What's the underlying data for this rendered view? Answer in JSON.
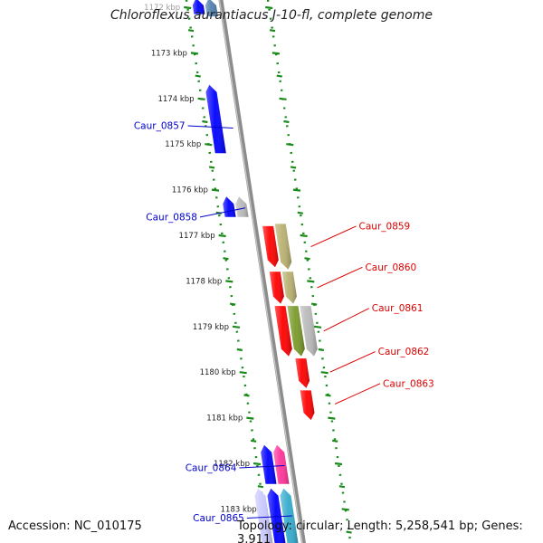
{
  "title": "Chloroflexus aurantiacus J-10-fl, complete genome",
  "footer": {
    "accession": "Accession: NC_010175",
    "topology": "Topology: circular; Length: 5,258,541 bp; Genes: 3,911"
  },
  "colors": {
    "backbone": "#8c8c8c",
    "tick": "#1a8a1a",
    "forward_label": "#0000cc",
    "reverse_label": "#dd0000",
    "blue": "#0000ff",
    "red": "#ff0000",
    "olive": "#b8b070",
    "grey": "#b8b8b8",
    "magenta": "#ff3399",
    "cyan": "#33aacc",
    "lavender": "#c8c8ff",
    "green": "#7a9a2a",
    "slate": "#5080b0"
  },
  "ruler_labels": [
    {
      "kbp": 1172,
      "text": "1172 kbp"
    },
    {
      "kbp": 1173,
      "text": "1173 kbp"
    },
    {
      "kbp": 1174,
      "text": "1174 kbp"
    },
    {
      "kbp": 1175,
      "text": "1175 kbp"
    },
    {
      "kbp": 1176,
      "text": "1176 kbp"
    },
    {
      "kbp": 1177,
      "text": "1177 kbp"
    },
    {
      "kbp": 1178,
      "text": "1178 kbp"
    },
    {
      "kbp": 1179,
      "text": "1179 kbp"
    },
    {
      "kbp": 1180,
      "text": "1180 kbp"
    },
    {
      "kbp": 1181,
      "text": "1181 kbp"
    },
    {
      "kbp": 1182,
      "text": "1182 kbp"
    },
    {
      "kbp": 1183,
      "text": "1183 kbp"
    }
  ],
  "features": [
    {
      "id": "f-top-1",
      "strand": "+",
      "ring": 0,
      "start": 1171.8,
      "end": 1172.2,
      "color": "slate"
    },
    {
      "id": "f-top-2",
      "strand": "+",
      "ring": 1,
      "start": 1171.8,
      "end": 1172.15,
      "color": "blue"
    },
    {
      "id": "f-0857",
      "strand": "+",
      "ring": 1,
      "start": 1173.7,
      "end": 1175.2,
      "color": "blue"
    },
    {
      "id": "f-0858a",
      "strand": "+",
      "ring": 0,
      "start": 1176.15,
      "end": 1176.6,
      "color": "grey"
    },
    {
      "id": "f-0858b",
      "strand": "+",
      "ring": 1,
      "start": 1176.15,
      "end": 1176.6,
      "color": "blue"
    },
    {
      "id": "f-0859a",
      "strand": "-",
      "ring": 0,
      "start": 1176.8,
      "end": 1177.7,
      "color": "red"
    },
    {
      "id": "f-0859b",
      "strand": "-",
      "ring": 1,
      "start": 1176.75,
      "end": 1177.75,
      "color": "olive"
    },
    {
      "id": "f-0860a",
      "strand": "-",
      "ring": 0,
      "start": 1177.8,
      "end": 1178.5,
      "color": "red"
    },
    {
      "id": "f-0860b",
      "strand": "-",
      "ring": 1,
      "start": 1177.8,
      "end": 1178.5,
      "color": "olive"
    },
    {
      "id": "f-0861a",
      "strand": "-",
      "ring": 0,
      "start": 1178.55,
      "end": 1179.65,
      "color": "red"
    },
    {
      "id": "f-0861b",
      "strand": "-",
      "ring": 1,
      "start": 1178.55,
      "end": 1179.65,
      "color": "green"
    },
    {
      "id": "f-0861c",
      "strand": "-",
      "ring": 2,
      "start": 1178.55,
      "end": 1179.65,
      "color": "grey"
    },
    {
      "id": "f-0862",
      "strand": "-",
      "ring": 1,
      "start": 1179.7,
      "end": 1180.35,
      "color": "red"
    },
    {
      "id": "f-0863",
      "strand": "-",
      "ring": 1,
      "start": 1180.4,
      "end": 1181.05,
      "color": "red"
    },
    {
      "id": "f-0864a",
      "strand": "+",
      "ring": 0,
      "start": 1181.6,
      "end": 1182.45,
      "color": "magenta"
    },
    {
      "id": "f-0864b",
      "strand": "+",
      "ring": 1,
      "start": 1181.6,
      "end": 1182.45,
      "color": "blue"
    },
    {
      "id": "f-0865a",
      "strand": "+",
      "ring": 0,
      "start": 1182.55,
      "end": 1183.8,
      "color": "cyan"
    },
    {
      "id": "f-0865b",
      "strand": "+",
      "ring": 1,
      "start": 1182.55,
      "end": 1183.8,
      "color": "blue"
    },
    {
      "id": "f-0865c",
      "strand": "+",
      "ring": 2,
      "start": 1182.55,
      "end": 1183.8,
      "color": "lavender"
    }
  ],
  "gene_labels": [
    {
      "text": "Caur_0857",
      "strand": "+",
      "kbp": 1174.65,
      "label_kbp": 1174.6
    },
    {
      "text": "Caur_0858",
      "strand": "+",
      "kbp": 1176.4,
      "label_kbp": 1176.6
    },
    {
      "text": "Caur_0859",
      "strand": "-",
      "kbp": 1177.25,
      "label_kbp": 1176.8
    },
    {
      "text": "Caur_0860",
      "strand": "-",
      "kbp": 1178.15,
      "label_kbp": 1177.7
    },
    {
      "text": "Caur_0861",
      "strand": "-",
      "kbp": 1179.1,
      "label_kbp": 1178.6
    },
    {
      "text": "Caur_0862",
      "strand": "-",
      "kbp": 1180.0,
      "label_kbp": 1179.55
    },
    {
      "text": "Caur_0863",
      "strand": "-",
      "kbp": 1180.7,
      "label_kbp": 1180.25
    },
    {
      "text": "Caur_0864",
      "strand": "+",
      "kbp": 1182.05,
      "label_kbp": 1182.1
    },
    {
      "text": "Caur_0865",
      "strand": "+",
      "kbp": 1183.15,
      "label_kbp": 1183.2
    }
  ]
}
